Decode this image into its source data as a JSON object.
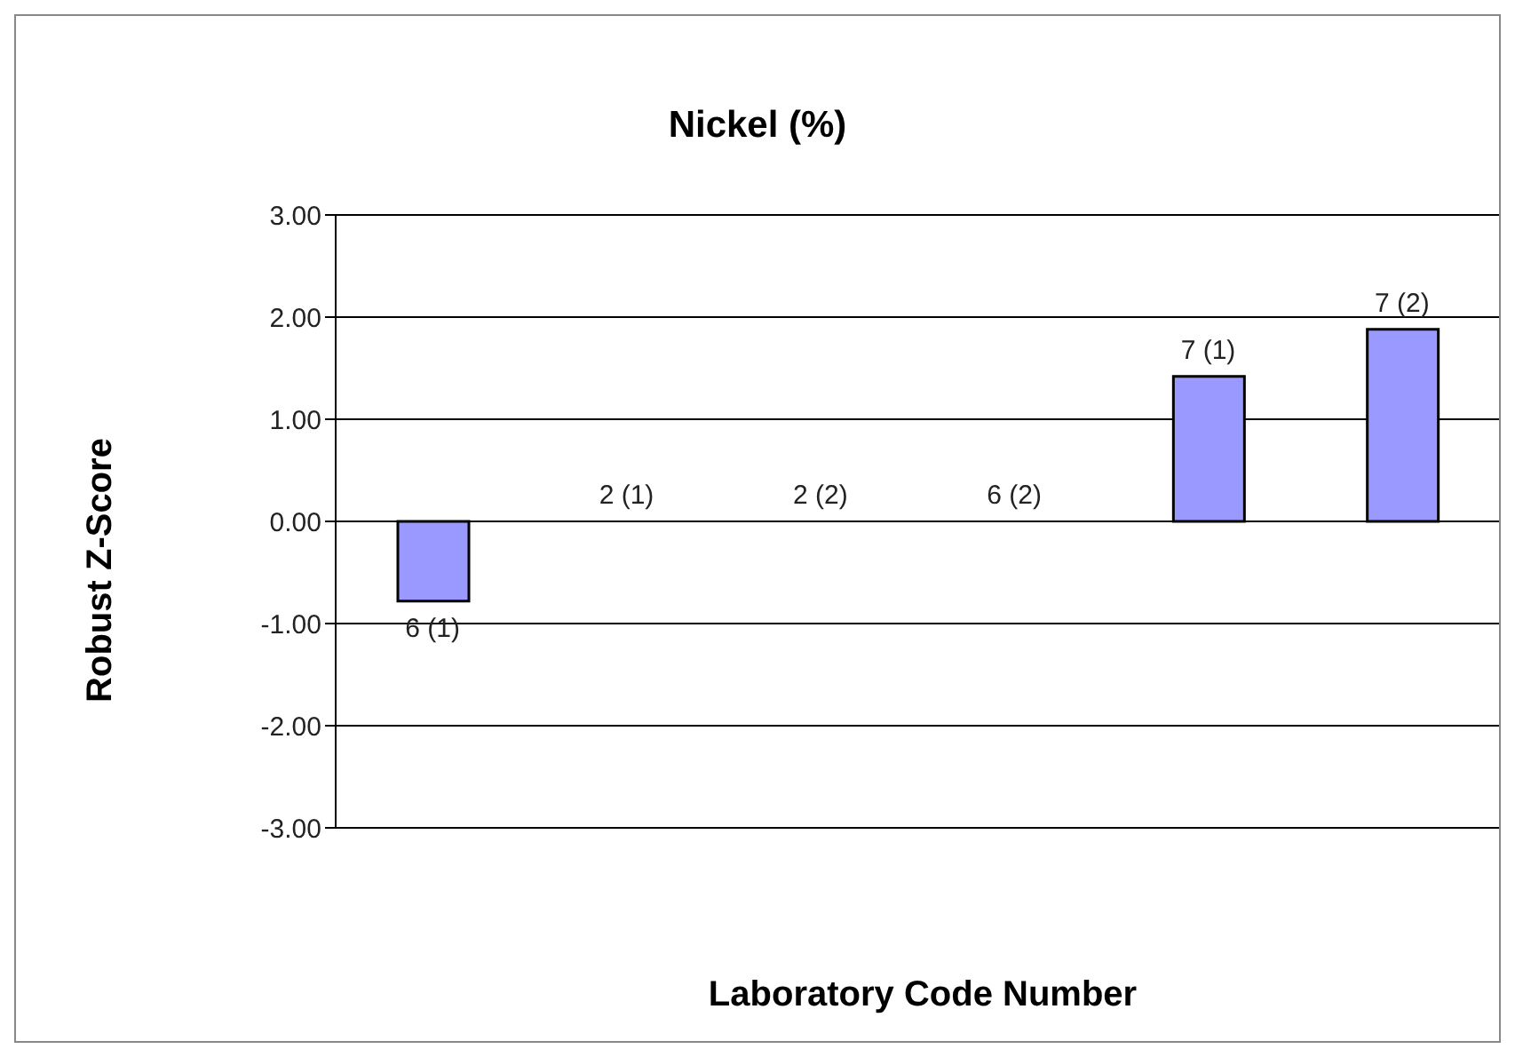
{
  "chart_data": {
    "type": "bar",
    "title": "Nickel (%)",
    "xlabel": "Laboratory Code Number",
    "ylabel": "Robust Z-Score",
    "categories": [
      "6 (1)",
      "2 (1)",
      "2 (2)",
      "6 (2)",
      "7 (1)",
      "7 (2)"
    ],
    "values": [
      -0.78,
      0,
      0,
      0,
      1.42,
      1.88
    ],
    "color": "#9999ff",
    "ylim": [
      -3,
      3
    ],
    "yticks": [
      {
        "value": -3,
        "label": "-3.00"
      },
      {
        "value": -2,
        "label": "-2.00"
      },
      {
        "value": -1,
        "label": "-1.00"
      },
      {
        "value": 0,
        "label": "0.00"
      },
      {
        "value": 1,
        "label": "1.00"
      },
      {
        "value": 2,
        "label": "2.00"
      },
      {
        "value": 3,
        "label": "3.00"
      }
    ],
    "grid": "y",
    "tick_labels": "y"
  }
}
